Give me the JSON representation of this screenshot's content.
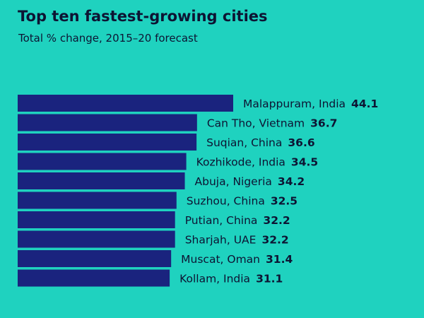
{
  "chart_data": {
    "type": "bar",
    "orientation": "horizontal",
    "title": "Top ten fastest-growing cities",
    "subtitle": "Total % change, 2015–20 forecast",
    "categories": [
      "Malappuram, India",
      "Can Tho, Vietnam",
      "Suqian, China",
      "Kozhikode, India",
      "Abuja, Nigeria",
      "Suzhou, China",
      "Putian, China",
      "Sharjah, UAE",
      "Muscat, Oman",
      "Kollam, India"
    ],
    "values": [
      44.1,
      36.7,
      36.6,
      34.5,
      34.2,
      32.5,
      32.2,
      32.2,
      31.4,
      31.1
    ],
    "value_labels": [
      "44.1",
      "36.7",
      "36.6",
      "34.5",
      "34.2",
      "32.5",
      "32.2",
      "32.2",
      "31.4",
      "31.1"
    ],
    "xlim": [
      0,
      44.1
    ],
    "grid": false,
    "legend": "none"
  },
  "colors": {
    "background": "#1fd2bf",
    "bar": "#1a237e",
    "text": "#0d1433"
  }
}
